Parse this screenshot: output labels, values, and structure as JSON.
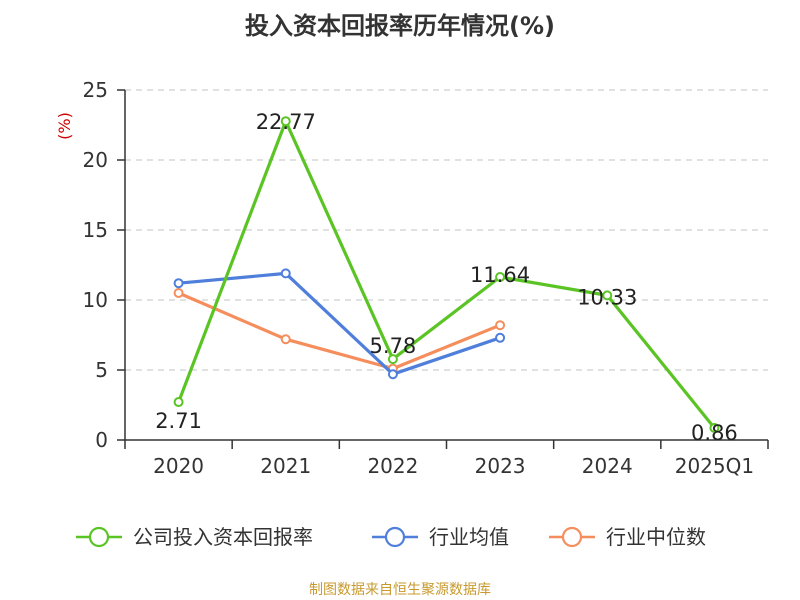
{
  "chart_data": {
    "type": "line",
    "title": "投入资本回报率历年情况(%)",
    "ylabel": "(%)",
    "xlabel": "",
    "categories": [
      "2020",
      "2021",
      "2022",
      "2023",
      "2024",
      "2025Q1"
    ],
    "ylim": [
      0,
      25
    ],
    "yticks": [
      0,
      5,
      10,
      15,
      20,
      25
    ],
    "grid": true,
    "legend_position": "bottom",
    "series": [
      {
        "name": "公司投入资本回报率",
        "color": "#5bc425",
        "values": [
          2.71,
          22.77,
          5.78,
          11.64,
          10.33,
          0.86
        ],
        "labels": [
          "2.71",
          "22.77",
          "5.78",
          "11.64",
          "10.33",
          "0.86"
        ]
      },
      {
        "name": "行业均值",
        "color": "#4f7fdb",
        "values": [
          11.2,
          11.9,
          4.7,
          7.3,
          null,
          null
        ]
      },
      {
        "name": "行业中位数",
        "color": "#f58d5c",
        "values": [
          10.5,
          7.2,
          5.1,
          8.2,
          null,
          null
        ]
      }
    ]
  },
  "footer": {
    "source": "制图数据来自恒生聚源数据库"
  }
}
